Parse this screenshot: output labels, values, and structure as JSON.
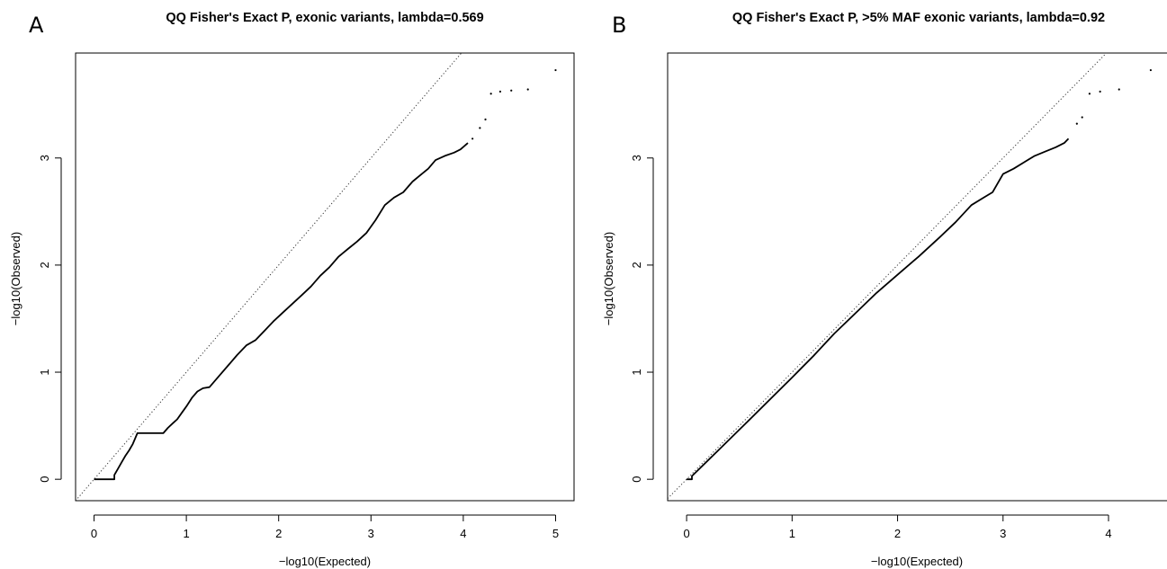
{
  "chart_data": [
    {
      "type": "scatter",
      "panel_label": "A",
      "title": "QQ Fisher's Exact P, exonic variants, lambda=0.569",
      "xlabel": "−log10(Expected)",
      "ylabel": "−log10(Observed)",
      "xlim": [
        -0.2,
        5.2
      ],
      "ylim": [
        -0.2,
        3.98
      ],
      "xticks": [
        "0",
        "1",
        "2",
        "3",
        "4",
        "5"
      ],
      "yticks": [
        "0",
        "1",
        "2",
        "3"
      ],
      "reference_line": "y = x (dotted)",
      "grid": false,
      "legend": "none",
      "series": [
        {
          "values_curve": [
            [
              0.0,
              0.0
            ],
            [
              0.22,
              0.0
            ],
            [
              0.22,
              0.04
            ],
            [
              0.26,
              0.1
            ],
            [
              0.3,
              0.16
            ],
            [
              0.34,
              0.22
            ],
            [
              0.38,
              0.27
            ],
            [
              0.42,
              0.33
            ],
            [
              0.47,
              0.43
            ],
            [
              0.75,
              0.43
            ],
            [
              0.8,
              0.48
            ],
            [
              0.85,
              0.52
            ],
            [
              0.9,
              0.56
            ],
            [
              0.95,
              0.62
            ],
            [
              1.0,
              0.68
            ],
            [
              1.06,
              0.76
            ],
            [
              1.12,
              0.82
            ],
            [
              1.18,
              0.85
            ],
            [
              1.25,
              0.86
            ],
            [
              1.35,
              0.96
            ],
            [
              1.45,
              1.06
            ],
            [
              1.55,
              1.16
            ],
            [
              1.65,
              1.25
            ],
            [
              1.75,
              1.3
            ],
            [
              1.85,
              1.39
            ],
            [
              1.95,
              1.48
            ],
            [
              2.05,
              1.56
            ],
            [
              2.15,
              1.64
            ],
            [
              2.25,
              1.72
            ],
            [
              2.35,
              1.8
            ],
            [
              2.45,
              1.9
            ],
            [
              2.55,
              1.98
            ],
            [
              2.65,
              2.08
            ],
            [
              2.75,
              2.15
            ],
            [
              2.85,
              2.22
            ],
            [
              2.95,
              2.3
            ],
            [
              3.05,
              2.42
            ],
            [
              3.15,
              2.56
            ],
            [
              3.25,
              2.63
            ],
            [
              3.35,
              2.68
            ],
            [
              3.45,
              2.78
            ],
            [
              3.55,
              2.85
            ],
            [
              3.62,
              2.9
            ],
            [
              3.7,
              2.98
            ],
            [
              3.8,
              3.02
            ],
            [
              3.9,
              3.05
            ],
            [
              3.97,
              3.08
            ],
            [
              4.05,
              3.14
            ]
          ],
          "values_points": [
            [
              4.1,
              3.18
            ],
            [
              4.18,
              3.28
            ],
            [
              4.24,
              3.36
            ],
            [
              4.3,
              3.6
            ],
            [
              4.4,
              3.62
            ],
            [
              4.52,
              3.63
            ],
            [
              4.7,
              3.64
            ],
            [
              5.0,
              3.82
            ]
          ]
        }
      ]
    },
    {
      "type": "scatter",
      "panel_label": "B",
      "title": "QQ Fisher's Exact P, >5% MAF exonic variants, lambda=0.92",
      "xlabel": "−log10(Expected)",
      "ylabel": "−log10(Observed)",
      "xlim": [
        -0.18,
        4.58
      ],
      "ylim": [
        -0.2,
        3.98
      ],
      "xticks": [
        "0",
        "1",
        "2",
        "3",
        "4"
      ],
      "yticks": [
        "0",
        "1",
        "2",
        "3"
      ],
      "reference_line": "y = x (dotted)",
      "grid": false,
      "legend": "none",
      "series": [
        {
          "values_curve": [
            [
              0.0,
              0.0
            ],
            [
              0.05,
              0.0
            ],
            [
              0.05,
              0.03
            ],
            [
              0.3,
              0.27
            ],
            [
              0.6,
              0.56
            ],
            [
              1.0,
              0.95
            ],
            [
              1.2,
              1.15
            ],
            [
              1.4,
              1.36
            ],
            [
              1.6,
              1.55
            ],
            [
              1.8,
              1.74
            ],
            [
              2.0,
              1.91
            ],
            [
              2.2,
              2.08
            ],
            [
              2.4,
              2.26
            ],
            [
              2.55,
              2.4
            ],
            [
              2.7,
              2.56
            ],
            [
              2.8,
              2.62
            ],
            [
              2.9,
              2.68
            ],
            [
              3.0,
              2.85
            ],
            [
              3.1,
              2.9
            ],
            [
              3.2,
              2.96
            ],
            [
              3.3,
              3.02
            ],
            [
              3.4,
              3.06
            ],
            [
              3.5,
              3.1
            ],
            [
              3.58,
              3.14
            ],
            [
              3.62,
              3.18
            ]
          ],
          "values_points": [
            [
              3.7,
              3.32
            ],
            [
              3.75,
              3.38
            ],
            [
              3.82,
              3.6
            ],
            [
              3.92,
              3.62
            ],
            [
              4.1,
              3.64
            ],
            [
              4.4,
              3.82
            ]
          ]
        }
      ]
    }
  ]
}
